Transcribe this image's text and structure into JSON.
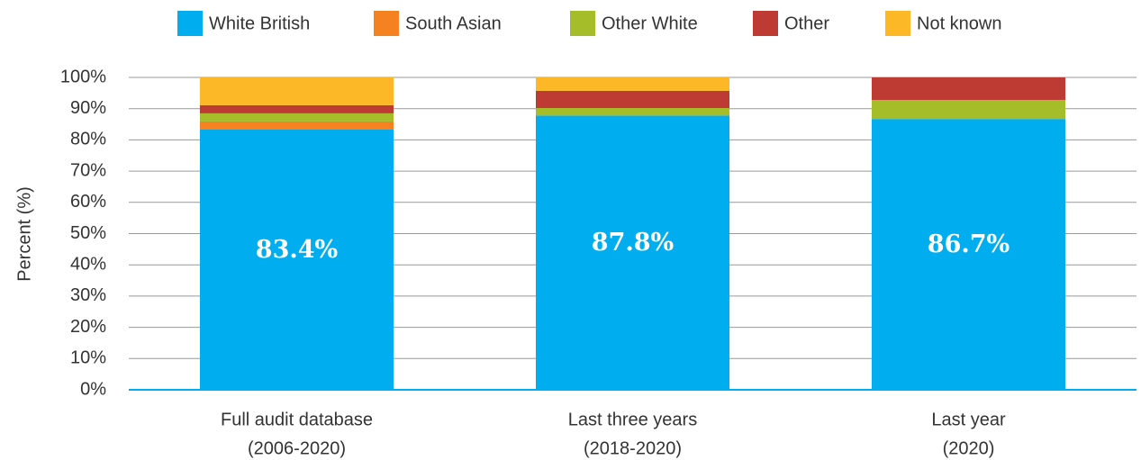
{
  "chart_data": {
    "type": "stacked_bar",
    "ylabel": "Percent (%)",
    "categories": [
      [
        "Full audit database",
        "(2006-2020)"
      ],
      [
        "Last three years",
        "(2018-2020)"
      ],
      [
        "Last year",
        "(2020)"
      ]
    ],
    "series": [
      {
        "name": "White British",
        "color": "#00aeef",
        "values": [
          83.4,
          87.8,
          86.7
        ],
        "value_labels": [
          "83.4%",
          "87.8%",
          "86.7%"
        ]
      },
      {
        "name": "South Asian",
        "color": "#f58220",
        "values": [
          2.5,
          0,
          0
        ]
      },
      {
        "name": "Other White",
        "color": "#a6bd2a",
        "values": [
          2.6,
          2.4,
          6.1
        ]
      },
      {
        "name": "Other",
        "color": "#be3b33",
        "values": [
          2.6,
          5.5,
          7.2
        ]
      },
      {
        "name": "Not known",
        "color": "#fdb827",
        "values": [
          8.9,
          4.3,
          0
        ]
      }
    ],
    "ylim": [
      0,
      100
    ],
    "yticks": [
      {
        "value": 0,
        "label": "0%"
      },
      {
        "value": 10,
        "label": "10%"
      },
      {
        "value": 20,
        "label": "20%"
      },
      {
        "value": 30,
        "label": "30%"
      },
      {
        "value": 40,
        "label": "40%"
      },
      {
        "value": 50,
        "label": "50%"
      },
      {
        "value": 60,
        "label": "60%"
      },
      {
        "value": 70,
        "label": "70%"
      },
      {
        "value": 80,
        "label": "80%"
      },
      {
        "value": 90,
        "label": "90%"
      },
      {
        "value": 100,
        "label": "100%"
      }
    ],
    "grid": true,
    "legend": "top"
  }
}
